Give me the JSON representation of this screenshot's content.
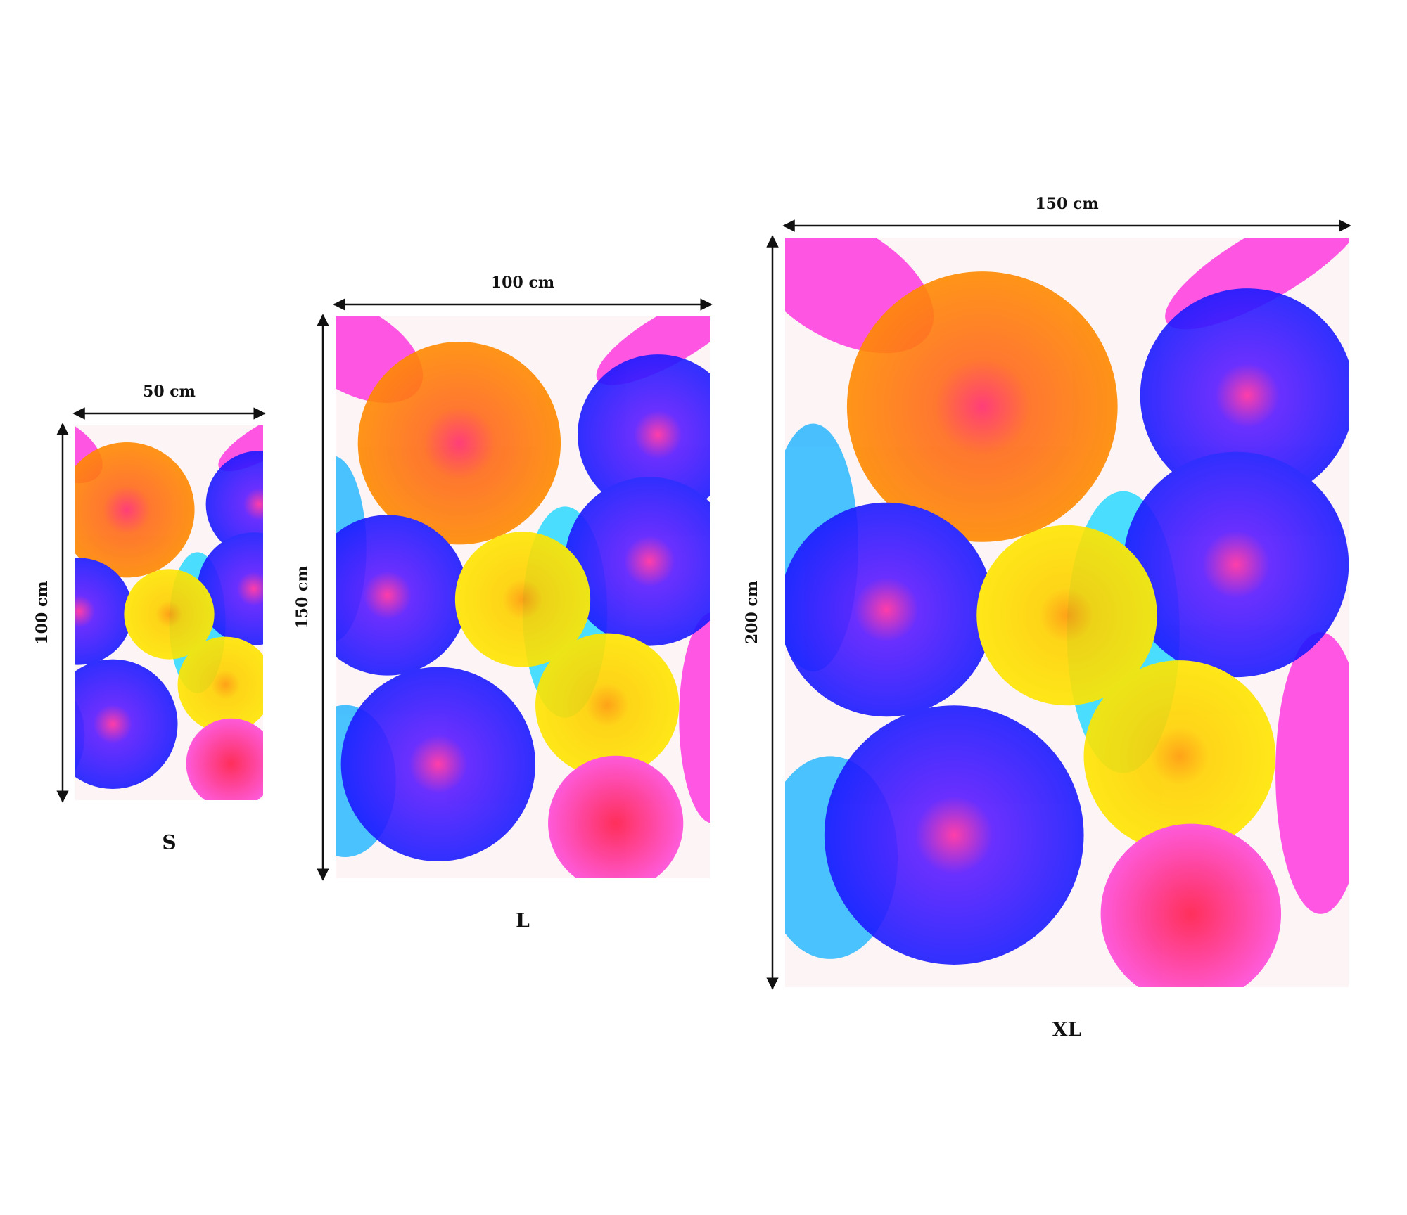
{
  "sizes": [
    {
      "label": "S",
      "width": "50 cm",
      "height": "100 cm"
    },
    {
      "label": "L",
      "width": "100 cm",
      "height": "150 cm"
    },
    {
      "label": "XL",
      "width": "150 cm",
      "height": "200 cm"
    }
  ]
}
